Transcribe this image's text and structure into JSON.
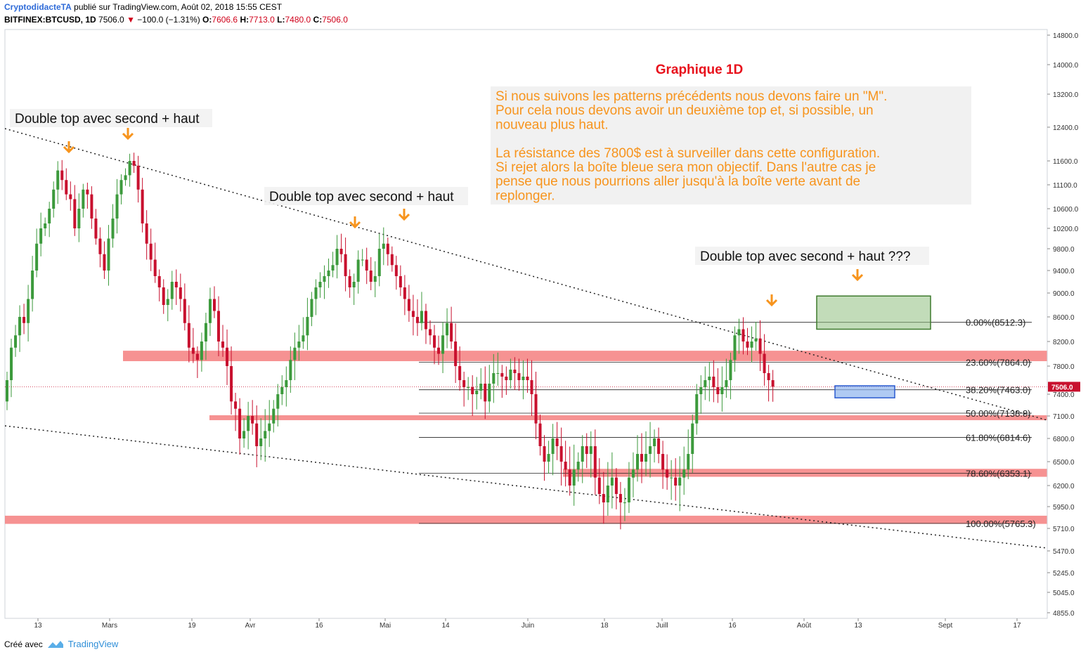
{
  "header": {
    "author": "CryptodidacteTA",
    "published": "publié sur TradingView.com, Août 02, 2018 15:55 CEST",
    "symbol": "BITFINEX:BTCUSD, 1D",
    "last": "7506.0",
    "change": "−100.0 (−1.31%)",
    "o_label": "O:",
    "o": "7606.6",
    "h_label": "H:",
    "h": "7713.0",
    "l_label": "L:",
    "l": "7480.0",
    "c_label": "C:",
    "c": "7506.0"
  },
  "footer": {
    "created_with": "Créé avec",
    "brand": "TradingView"
  },
  "colors": {
    "up": "#3c9a3c",
    "down": "#c8102e",
    "zone": "#f47f7f",
    "green_box": "#8fbf80",
    "blue_box": "#8db3ee",
    "arrow": "#f7941d",
    "title": "#e8111c",
    "note": "#f7941d"
  },
  "chart_data": {
    "type": "candlestick",
    "title": "Graphique 1D",
    "price_axis": [
      "14800.0",
      "14000.0",
      "13200.0",
      "12400.0",
      "11600.0",
      "11100.0",
      "10600.0",
      "10200.0",
      "9800.0",
      "9400.0",
      "9000.0",
      "8600.0",
      "8200.0",
      "7800.0",
      "7400.0",
      "7100.0",
      "6800.0",
      "6500.0",
      "6200.0",
      "5950.0",
      "5710.0",
      "5470.0",
      "5245.0",
      "5045.0",
      "4855.0"
    ],
    "time_axis": [
      "13",
      "Mars",
      "19",
      "Avr",
      "16",
      "Mai",
      "14",
      "Juin",
      "18",
      "Juill",
      "16",
      "Août",
      "13",
      "Sept",
      "17"
    ],
    "last_price_label": "7506.0",
    "fib_levels": [
      {
        "label": "0.00%(8512.3)",
        "value": 8512.3
      },
      {
        "label": "23.60%(7864.0)",
        "value": 7864.0
      },
      {
        "label": "38.20%(7463.0)",
        "value": 7463.0
      },
      {
        "label": "50.00%(7138.8)",
        "value": 7138.8
      },
      {
        "label": "61.80%(6814.6)",
        "value": 6814.6
      },
      {
        "label": "78.60%(6353.1)",
        "value": 6353.1
      },
      {
        "label": "100.00%(5765.3)",
        "value": 5765.3
      }
    ],
    "resistance_zones": [
      {
        "low": 7880,
        "high": 8050
      },
      {
        "low": 7060,
        "high": 7110
      },
      {
        "low": 6310,
        "high": 6410
      },
      {
        "low": 5760,
        "high": 5850
      }
    ],
    "target_boxes": [
      {
        "name": "green",
        "low": 8400,
        "high": 8950
      },
      {
        "name": "blue",
        "low": 7350,
        "high": 7520
      }
    ],
    "annotations": [
      "Double top avec second + haut",
      "Double top avec second + haut",
      "Double top avec second + haut ???"
    ],
    "note_paragraphs": [
      "Si nous suivons les patterns précédents nous devons faire un \"M\".",
      "Pour cela nous devons avoir un deuxième top et, si possible, un",
      "nouveau plus haut.",
      "",
      "La résistance des 7800$ est à surveiller dans cette configuration.",
      "Si rejet alors la boîte bleue sera mon objectif. Dans l'autre cas je",
      "pense que nous pourrions aller jusqu'à la boîte verte avant de",
      "replonger."
    ],
    "closes": [
      7600,
      8100,
      8300,
      8600,
      8500,
      8900,
      9400,
      9900,
      10200,
      10300,
      10600,
      11000,
      11400,
      11200,
      10900,
      10800,
      10200,
      10600,
      11000,
      10900,
      10400,
      10000,
      9700,
      9400,
      10000,
      10400,
      10900,
      11200,
      11300,
      11600,
      11500,
      11000,
      10300,
      9900,
      9600,
      9300,
      9100,
      8800,
      8900,
      9200,
      9100,
      8900,
      8500,
      8100,
      8000,
      7900,
      8200,
      8500,
      8900,
      8700,
      8200,
      8100,
      7800,
      7300,
      7200,
      6800,
      6900,
      7100,
      7000,
      6700,
      6800,
      6900,
      7000,
      7200,
      7400,
      7500,
      7600,
      7900,
      8100,
      8200,
      8300,
      8600,
      8900,
      9100,
      9200,
      9300,
      9400,
      9500,
      9800,
      9700,
      9300,
      9100,
      9200,
      9600,
      9600,
      9400,
      9200,
      9300,
      9800,
      9900,
      9700,
      9500,
      9300,
      9100,
      8900,
      8700,
      8600,
      8500,
      8700,
      8400,
      8300,
      8100,
      8000,
      8300,
      8500,
      8200,
      7800,
      7600,
      7500,
      7500,
      7400,
      7450,
      7550,
      7300,
      7550,
      7700,
      7700,
      7650,
      7600,
      7750,
      7700,
      7600,
      7650,
      7600,
      7400,
      7000,
      6700,
      6500,
      6600,
      6800,
      6700,
      6500,
      6400,
      6200,
      6400,
      6500,
      6700,
      6600,
      6700,
      6300,
      6100,
      6000,
      6200,
      6300,
      6100,
      6000,
      6000,
      6300,
      6400,
      6600,
      6500,
      6600,
      6700,
      6800,
      6600,
      6400,
      6300,
      6300,
      6200,
      6300,
      6400,
      6600,
      7000,
      7400,
      7500,
      7600,
      7650,
      7500,
      7400,
      7500,
      7600,
      7900,
      8300,
      8400,
      8200,
      8100,
      8200,
      8250,
      8000,
      7700,
      7600,
      7506
    ]
  }
}
